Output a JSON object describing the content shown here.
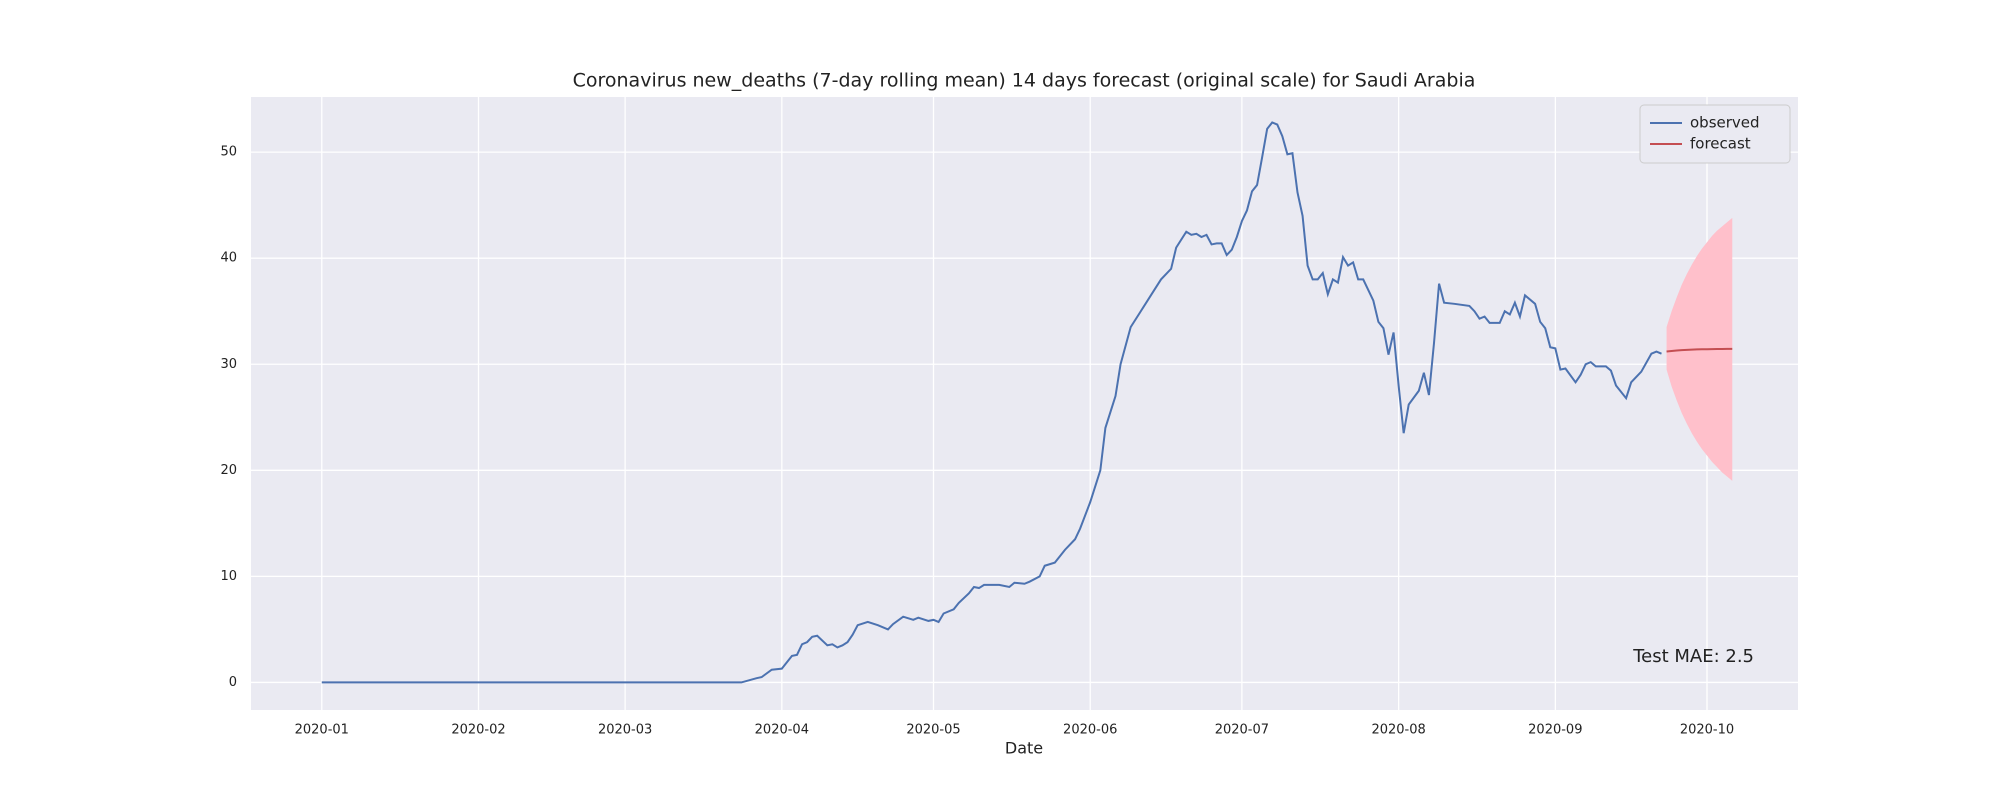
{
  "chart_data": {
    "type": "line",
    "title": "Coronavirus new_deaths (7-day rolling mean) 14 days forecast (original scale) for Saudi Arabia",
    "x_label": "Date",
    "annotation": "Test MAE: 2.5",
    "xlim": [
      "2019-12-18",
      "2020-10-19"
    ],
    "xticks": [
      "2020-01",
      "2020-02",
      "2020-03",
      "2020-04",
      "2020-05",
      "2020-06",
      "2020-07",
      "2020-08",
      "2020-09",
      "2020-10"
    ],
    "ylim": [
      -2.6,
      55.2
    ],
    "yticks": [
      0,
      10,
      20,
      30,
      40,
      50
    ],
    "grid": true,
    "legend": "upper right",
    "series": [
      {
        "name": "observed",
        "color": "#4c72b0",
        "x": [
          "2020-01-01",
          "2020-03-24",
          "2020-03-27",
          "2020-03-28",
          "2020-03-30",
          "2020-04-01",
          "2020-04-03",
          "2020-04-04",
          "2020-04-05",
          "2020-04-06",
          "2020-04-07",
          "2020-04-08",
          "2020-04-10",
          "2020-04-11",
          "2020-04-12",
          "2020-04-13",
          "2020-04-14",
          "2020-04-15",
          "2020-04-16",
          "2020-04-18",
          "2020-04-20",
          "2020-04-22",
          "2020-04-23",
          "2020-04-25",
          "2020-04-27",
          "2020-04-28",
          "2020-04-30",
          "2020-05-01",
          "2020-05-02",
          "2020-05-03",
          "2020-05-05",
          "2020-05-06",
          "2020-05-08",
          "2020-05-09",
          "2020-05-10",
          "2020-05-11",
          "2020-05-14",
          "2020-05-16",
          "2020-05-17",
          "2020-05-19",
          "2020-05-20",
          "2020-05-22",
          "2020-05-23",
          "2020-05-25",
          "2020-05-27",
          "2020-05-29",
          "2020-05-30",
          "2020-06-01",
          "2020-06-03",
          "2020-06-04",
          "2020-06-06",
          "2020-06-07",
          "2020-06-09",
          "2020-06-11",
          "2020-06-13",
          "2020-06-15",
          "2020-06-17",
          "2020-06-18",
          "2020-06-20",
          "2020-06-21",
          "2020-06-22",
          "2020-06-23",
          "2020-06-24",
          "2020-06-25",
          "2020-06-26",
          "2020-06-27",
          "2020-06-28",
          "2020-06-29",
          "2020-06-30",
          "2020-07-01",
          "2020-07-02",
          "2020-07-03",
          "2020-07-04",
          "2020-07-05",
          "2020-07-06",
          "2020-07-07",
          "2020-07-08",
          "2020-07-09",
          "2020-07-10",
          "2020-07-11",
          "2020-07-12",
          "2020-07-13",
          "2020-07-14",
          "2020-07-15",
          "2020-07-16",
          "2020-07-17",
          "2020-07-18",
          "2020-07-19",
          "2020-07-20",
          "2020-07-21",
          "2020-07-22",
          "2020-07-23",
          "2020-07-24",
          "2020-07-25",
          "2020-07-27",
          "2020-07-28",
          "2020-07-29",
          "2020-07-30",
          "2020-07-31",
          "2020-08-01",
          "2020-08-02",
          "2020-08-03",
          "2020-08-05",
          "2020-08-06",
          "2020-08-07",
          "2020-08-08",
          "2020-08-09",
          "2020-08-10",
          "2020-08-12",
          "2020-08-15",
          "2020-08-16",
          "2020-08-17",
          "2020-08-18",
          "2020-08-19",
          "2020-08-21",
          "2020-08-22",
          "2020-08-23",
          "2020-08-24",
          "2020-08-25",
          "2020-08-26",
          "2020-08-28",
          "2020-08-29",
          "2020-08-30",
          "2020-08-31",
          "2020-09-01",
          "2020-09-02",
          "2020-09-03",
          "2020-09-05",
          "2020-09-06",
          "2020-09-07",
          "2020-09-08",
          "2020-09-09",
          "2020-09-11",
          "2020-09-12",
          "2020-09-13",
          "2020-09-15",
          "2020-09-16",
          "2020-09-18",
          "2020-09-20",
          "2020-09-21",
          "2020-09-22"
        ],
        "values": [
          0,
          0,
          0.4,
          0.5,
          1.2,
          1.3,
          2.5,
          2.6,
          3.6,
          3.8,
          4.3,
          4.4,
          3.5,
          3.6,
          3.3,
          3.5,
          3.8,
          4.5,
          5.4,
          5.7,
          5.4,
          5,
          5.5,
          6.2,
          5.9,
          6.1,
          5.8,
          5.9,
          5.7,
          6.5,
          6.9,
          7.5,
          8.4,
          9,
          8.9,
          9.2,
          9.2,
          9,
          9.4,
          9.3,
          9.5,
          10,
          11,
          11.3,
          12.5,
          13.5,
          14.5,
          17,
          20,
          24,
          27,
          30,
          33.5,
          35,
          36.5,
          38,
          39,
          41,
          42.5,
          42.2,
          42.3,
          42,
          42.2,
          41.3,
          41.4,
          41.4,
          40.3,
          40.8,
          42,
          43.5,
          44.5,
          46.3,
          46.9,
          49.5,
          52.2,
          52.8,
          52.6,
          51.5,
          49.8,
          49.9,
          46.2,
          44,
          39.3,
          38,
          38,
          38.6,
          36.6,
          38,
          37.7,
          40.1,
          39.3,
          39.6,
          38,
          38,
          36,
          34,
          33.4,
          30.9,
          33,
          28,
          23.5,
          26.2,
          27.5,
          29.2,
          27.1,
          32,
          37.6,
          35.8,
          35.7,
          35.5,
          35,
          34.3,
          34.5,
          33.9,
          33.9,
          35,
          34.7,
          35.8,
          34.5,
          36.5,
          35.7,
          34,
          33.4,
          31.6,
          31.5,
          29.5,
          29.6,
          28.3,
          29,
          30,
          30.2,
          29.8,
          29.8,
          29.4,
          28,
          26.8,
          28.3,
          29.3,
          31,
          31.2,
          31
        ]
      },
      {
        "name": "forecast",
        "color": "#c44e52",
        "band_color": "#ffc0cb",
        "x": [
          "2020-09-23",
          "2020-09-24",
          "2020-09-25",
          "2020-09-26",
          "2020-09-27",
          "2020-09-28",
          "2020-09-29",
          "2020-09-30",
          "2020-10-01",
          "2020-10-02",
          "2020-10-03",
          "2020-10-04",
          "2020-10-05",
          "2020-10-06"
        ],
        "values": [
          31.2,
          31.25,
          31.3,
          31.33,
          31.36,
          31.38,
          31.4,
          31.41,
          31.42,
          31.43,
          31.44,
          31.44,
          31.45,
          31.45
        ],
        "lower": [
          29.5,
          27.9,
          26.6,
          25.4,
          24.4,
          23.5,
          22.7,
          22,
          21.4,
          20.8,
          20.3,
          19.8,
          19.4,
          19
        ],
        "upper": [
          33.5,
          35,
          36.3,
          37.5,
          38.5,
          39.4,
          40.2,
          40.9,
          41.5,
          42.1,
          42.6,
          43,
          43.4,
          43.8
        ]
      }
    ]
  }
}
